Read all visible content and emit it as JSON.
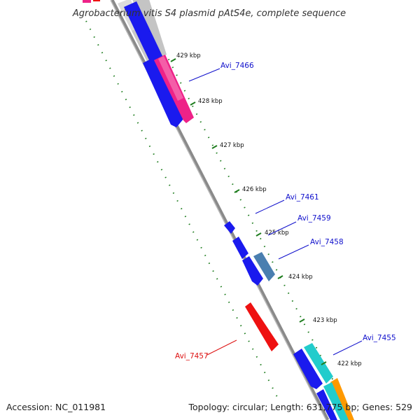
{
  "title": "Agrobacterium vitis S4 plasmid pAtS4e, complete sequence",
  "footer": {
    "accession": "Accession: NC_011981",
    "summary": "Topology: circular; Length: 631,775 bp; Genes: 529"
  },
  "colors": {
    "backbone": "#8a8a8a",
    "tick": "#1e7d1e",
    "label_blue": "#1010cc",
    "label_red": "#dd1111",
    "gene_blue": "#1a1aee",
    "gene_pink": "#ee2288",
    "gene_grey": "#c4c4c4",
    "gene_red": "#ee1111",
    "gene_steel": "#4a7fb0",
    "gene_cyan": "#22cccc",
    "gene_orange": "#ff9900"
  },
  "ticks": [
    "429 kbp",
    "428 kbp",
    "427 kbp",
    "426 kbp",
    "425 kbp",
    "424 kbp",
    "423 kbp",
    "422 kbp"
  ],
  "genes": [
    {
      "label": "Avi_7466",
      "color": "blue"
    },
    {
      "label": "Avi_7461",
      "color": "blue"
    },
    {
      "label": "Avi_7459",
      "color": "blue"
    },
    {
      "label": "Avi_7458",
      "color": "blue"
    },
    {
      "label": "Avi_7455",
      "color": "blue"
    },
    {
      "label": "Avi_7457",
      "color": "red"
    }
  ]
}
